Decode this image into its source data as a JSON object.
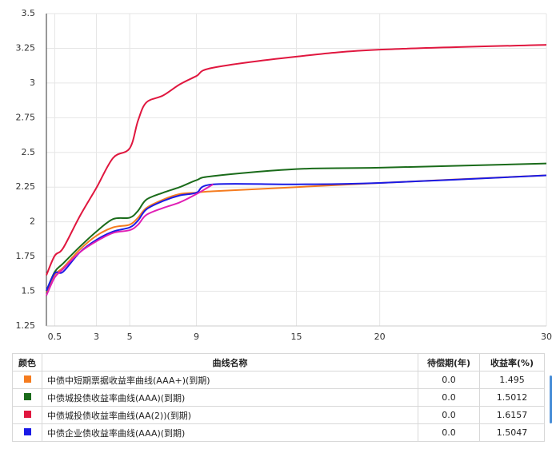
{
  "chart_data": {
    "type": "line",
    "x": [
      0,
      0.5,
      1,
      2,
      3,
      4,
      5,
      5.5,
      6,
      7,
      8,
      9,
      10,
      15,
      20,
      30
    ],
    "series": [
      {
        "name": "中债中短期票据收益率曲线(AAA+)(到期)",
        "color": "#f57c1f",
        "values": [
          1.495,
          1.62,
          1.67,
          1.8,
          1.9,
          1.96,
          1.98,
          2.03,
          2.1,
          2.16,
          2.2,
          2.21,
          2.22,
          2.25,
          2.28,
          2.335
        ]
      },
      {
        "name": "中债城投债收益率曲线(AAA)(到期)",
        "color": "#1a6b1a",
        "values": [
          1.5012,
          1.64,
          1.7,
          1.82,
          1.93,
          2.02,
          2.03,
          2.08,
          2.16,
          2.21,
          2.25,
          2.3,
          2.33,
          2.38,
          2.39,
          2.42
        ]
      },
      {
        "name": "中债城投债收益率曲线(AA(2))(到期)",
        "color": "#e0173f",
        "values": [
          1.6157,
          1.756,
          1.81,
          2.04,
          2.245,
          2.46,
          2.53,
          2.73,
          2.86,
          2.91,
          2.99,
          3.05,
          3.11,
          3.19,
          3.24,
          3.275
        ]
      },
      {
        "name": "中债企业债收益率曲线(AAA)(到期)",
        "color": "#1a1ae6",
        "values": [
          1.5047,
          1.63,
          1.64,
          1.78,
          1.87,
          1.93,
          1.96,
          2.01,
          2.09,
          2.15,
          2.19,
          2.21,
          2.27,
          2.27,
          2.28,
          2.335
        ]
      },
      {
        "color": "#e01fb5",
        "values": [
          1.47,
          1.6,
          1.66,
          1.78,
          1.86,
          1.92,
          1.94,
          1.98,
          2.05,
          2.1,
          2.14,
          2.2,
          2.27,
          null,
          null,
          null
        ]
      }
    ],
    "xlim": [
      0,
      30
    ],
    "xticks": [
      0.5,
      3,
      5,
      9,
      15,
      20,
      30
    ],
    "ylim": [
      1.25,
      3.5
    ],
    "yticks": [
      1.25,
      1.5,
      1.75,
      2,
      2.25,
      2.5,
      2.75,
      3,
      3.25,
      3.5
    ],
    "grid": true
  },
  "table": {
    "headers": [
      "颜色",
      "曲线名称",
      "待偿期(年)",
      "收益率(%)"
    ],
    "rows": [
      {
        "term": "0.0"
      },
      {
        "term": "0.0"
      },
      {
        "term": "0.0"
      },
      {
        "term": "0.0"
      }
    ]
  }
}
